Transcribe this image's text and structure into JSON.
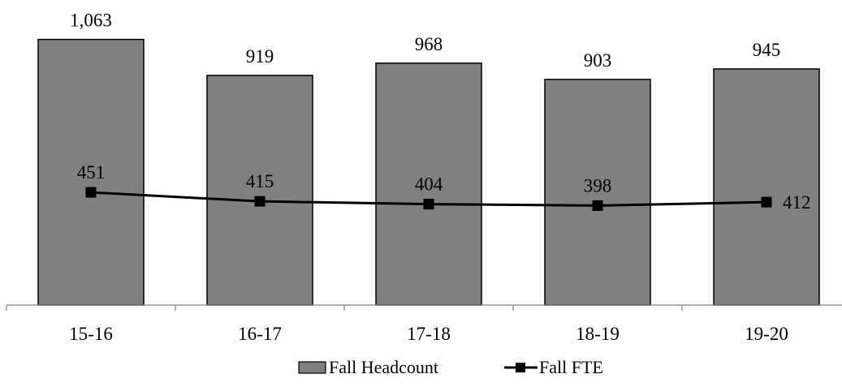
{
  "chart_data": {
    "type": "bar",
    "categories": [
      "15-16",
      "16-17",
      "17-18",
      "18-19",
      "19-20"
    ],
    "series": [
      {
        "name": "Fall Headcount",
        "type": "bar",
        "values": [
          1063,
          919,
          968,
          903,
          945
        ],
        "labels": [
          "1,063",
          "919",
          "968",
          "903",
          "945"
        ]
      },
      {
        "name": "Fall FTE",
        "type": "line",
        "values": [
          451,
          415,
          404,
          398,
          412
        ],
        "labels": [
          "451",
          "415",
          "404",
          "398",
          "412"
        ]
      }
    ],
    "ylim": [
      0,
      1200
    ],
    "grid": false,
    "legend_position": "bottom",
    "colors": {
      "bar_fill": "#808080",
      "bar_stroke": "#000000",
      "line": "#000000",
      "axis": "#808080"
    }
  }
}
